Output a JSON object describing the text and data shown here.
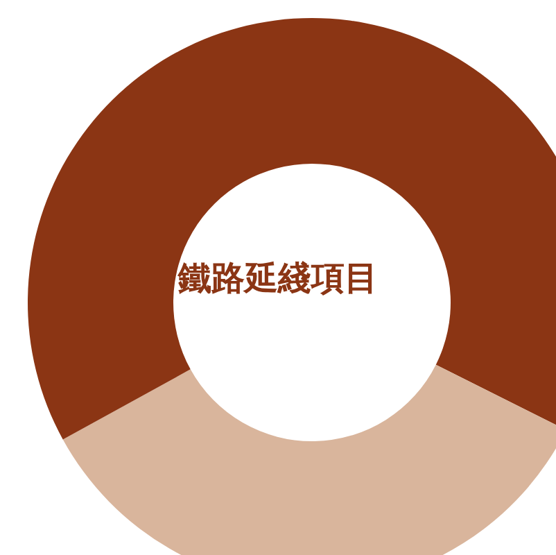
{
  "chart_data": {
    "type": "donut",
    "title": "鐵路延綫項目",
    "categories": [
      null,
      null,
      null
    ],
    "values": [
      32.4,
      34.6,
      33.0
    ],
    "colors": [
      "#8b3514",
      "#d9b59c",
      "#8b3514"
    ]
  }
}
